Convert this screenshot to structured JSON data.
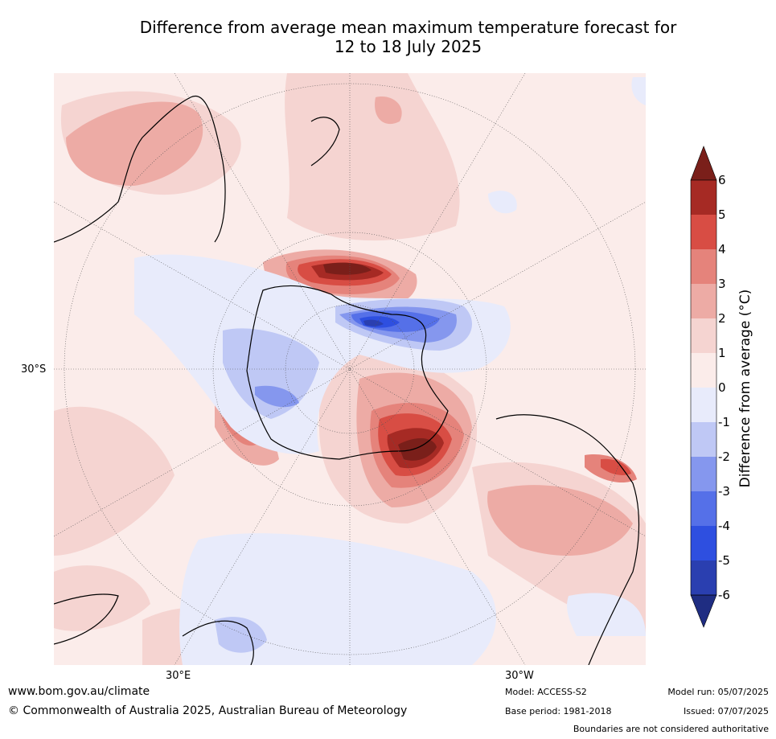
{
  "title_line1": "Difference from average mean maximum temperature forecast for",
  "title_line2": "12 to 18 July 2025",
  "map": {
    "labels": {
      "lat": "30°S",
      "lon_east": "30°E",
      "lon_west": "30°W"
    },
    "colors": {
      "below_-6": "#1f2d82",
      "-6_-5": "#2a3fb0",
      "-5_-4": "#2e4fe0",
      "-4_-3": "#5570e8",
      "-3_-2": "#8597ee",
      "-2_-1": "#bfc8f5",
      "-1_0": "#e8ebfb",
      "0_1": "#fbecea",
      "1_2": "#f5d4d1",
      "2_3": "#edaba5",
      "3_4": "#e5837b",
      "4_5": "#d84d44",
      "5_6": "#a62a24",
      "above_6": "#7a1f1a"
    }
  },
  "colorbar": {
    "label": "Difference from average (°C)",
    "ticks": [
      "6",
      "5",
      "4",
      "3",
      "2",
      "1",
      "0",
      "-1",
      "-2",
      "-3",
      "-4",
      "-5",
      "-6"
    ]
  },
  "footer": {
    "url": "www.bom.gov.au/climate",
    "copyright": "© Commonwealth of Australia 2025, Australian Bureau of Meteorology",
    "model": "Model: ACCESS-S2",
    "base_period": "Base period: 1981-2018",
    "model_run": "Model run: 05/07/2025",
    "issued": "Issued: 07/07/2025",
    "disclaimer": "Boundaries are not considered authoritative"
  }
}
